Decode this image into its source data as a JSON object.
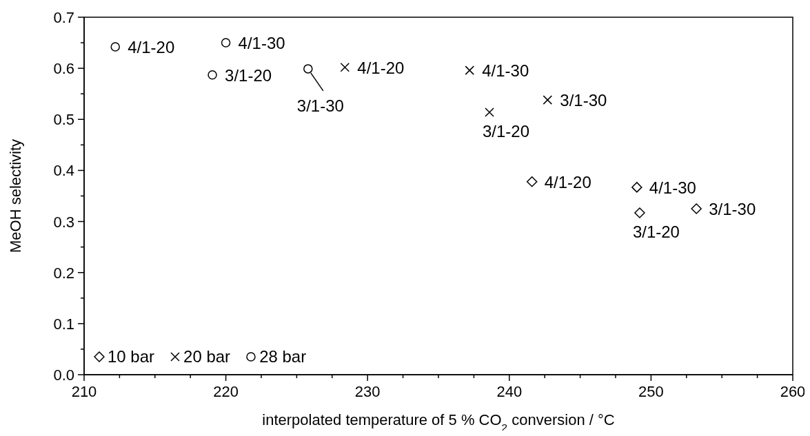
{
  "chart_data": {
    "type": "scatter",
    "xlabel": "interpolated temperature of 5 % CO$_{2}$ conversion / °C",
    "ylabel": "MeOH selectivity",
    "xlim": [
      210,
      260
    ],
    "xticks": [
      210,
      {
        "value": 212.5,
        "label": null
      },
      {
        "value": 215,
        "label": null
      },
      {
        "value": 217.5,
        "label": null
      },
      220,
      {
        "value": 222.5,
        "label": null
      },
      {
        "value": 225,
        "label": null
      },
      {
        "value": 227.5,
        "label": null
      },
      230,
      {
        "value": 232.5,
        "label": null
      },
      {
        "value": 235,
        "label": null
      },
      {
        "value": 237.5,
        "label": null
      },
      240,
      {
        "value": 242.5,
        "label": null
      },
      {
        "value": 245,
        "label": null
      },
      {
        "value": 247.5,
        "label": null
      },
      250,
      {
        "value": 252.5,
        "label": null
      },
      {
        "value": 255,
        "label": null
      },
      {
        "value": 257.5,
        "label": null
      },
      260
    ],
    "ylim": [
      0,
      0.7
    ],
    "yticks": [
      {
        "value": 0,
        "label": "0.0"
      },
      {
        "value": 0.05,
        "label": null
      },
      0.1,
      {
        "value": 0.15,
        "label": null
      },
      0.2,
      {
        "value": 0.25,
        "label": null
      },
      0.3,
      {
        "value": 0.35,
        "label": null
      },
      0.4,
      {
        "value": 0.45,
        "label": null
      },
      0.5,
      {
        "value": 0.55,
        "label": null
      },
      0.6,
      {
        "value": 0.65,
        "label": null
      },
      0.7
    ],
    "legend": "bottom left",
    "series": [
      {
        "name": "10 bar",
        "color": "#000000",
        "marker": "diamond",
        "x": [
          241.6,
          249.0,
          253.2,
          249.2
        ],
        "values": [
          0.378,
          0.367,
          0.325,
          0.317
        ]
      },
      {
        "name": "20 bar",
        "color": "#000000",
        "marker": "cross",
        "x": [
          228.4,
          237.2,
          242.7,
          238.6
        ],
        "values": [
          0.602,
          0.596,
          0.538,
          0.514
        ]
      },
      {
        "name": "28 bar",
        "color": "#000000",
        "marker": "circle",
        "x": [
          212.2,
          220.0,
          219.05,
          225.8
        ],
        "values": [
          0.642,
          0.65,
          0.587,
          0.599
        ]
      }
    ],
    "annotations": [
      {
        "text": "4/1-20",
        "x": 241.6,
        "y": 0.378
      },
      {
        "text": "4/1-30",
        "x": 249.0,
        "y": 0.367
      },
      {
        "text": "3/1-30",
        "x": 253.2,
        "y": 0.325
      },
      {
        "text": "3/1-20",
        "x": 249.2,
        "y": 0.317
      },
      {
        "text": "4/1-20",
        "x": 228.4,
        "y": 0.602
      },
      {
        "text": "4/1-30",
        "x": 237.2,
        "y": 0.596
      },
      {
        "text": "3/1-30",
        "x": 242.7,
        "y": 0.538
      },
      {
        "text": "3/1-20",
        "x": 238.6,
        "y": 0.514
      },
      {
        "text": "4/1-20",
        "x": 212.2,
        "y": 0.642
      },
      {
        "text": "4/1-30",
        "x": 220.0,
        "y": 0.65
      },
      {
        "text": "3/1-20",
        "x": 219.05,
        "y": 0.587
      },
      {
        "text": "3/1-30",
        "x": 225.8,
        "y": 0.599
      }
    ]
  }
}
